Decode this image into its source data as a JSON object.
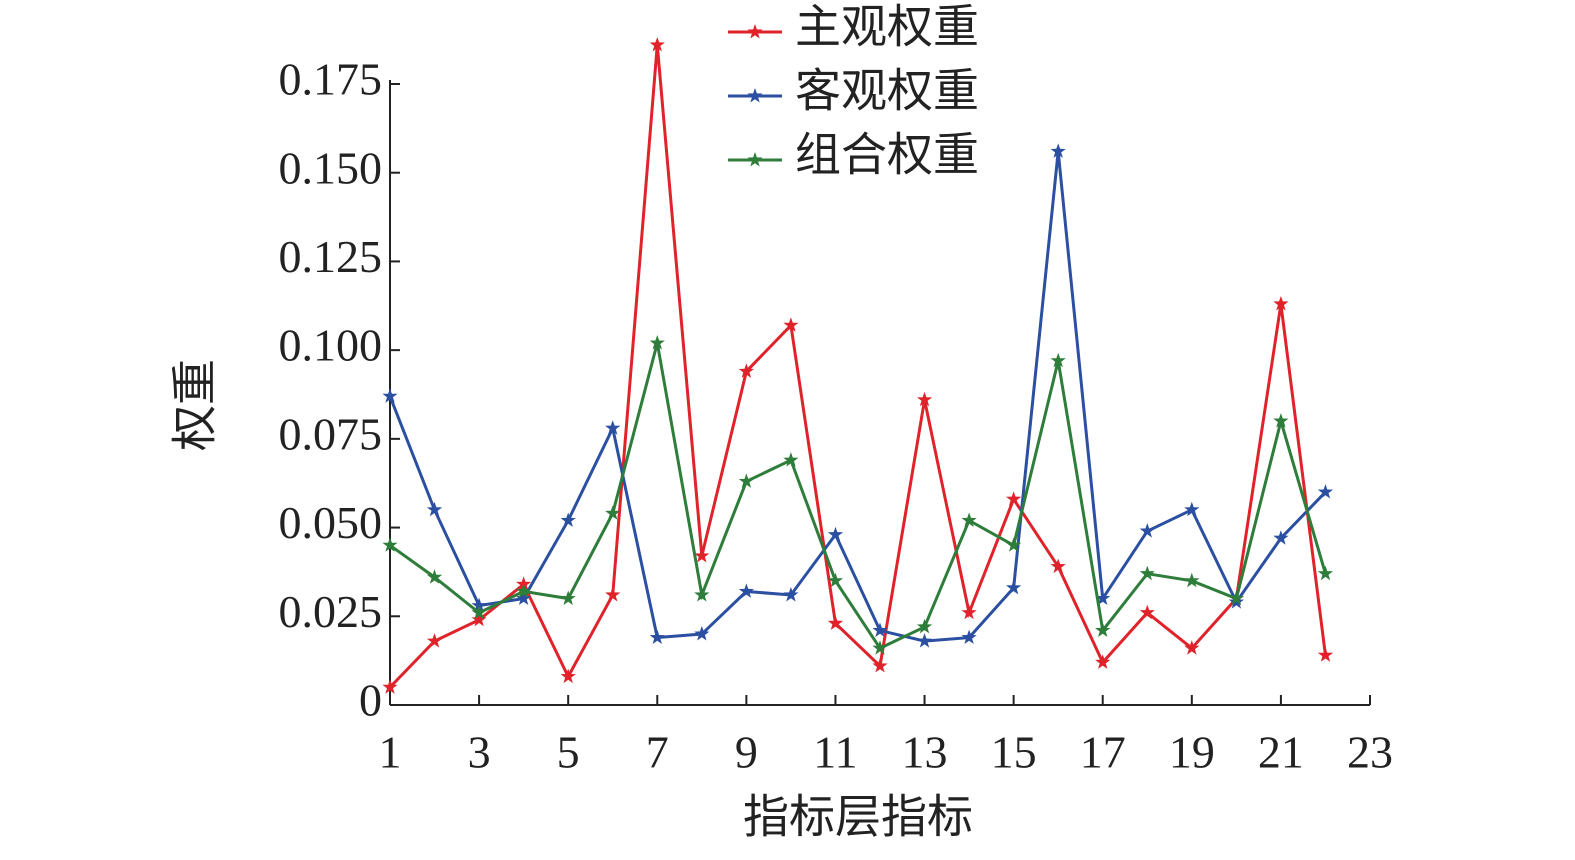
{
  "chart_data": {
    "type": "line",
    "x_label": "指标层指标",
    "y_label": "权重",
    "x": [
      1,
      2,
      3,
      4,
      5,
      6,
      7,
      8,
      9,
      10,
      11,
      12,
      13,
      14,
      15,
      16,
      17,
      18,
      19,
      20,
      21,
      22
    ],
    "series": [
      {
        "name": "主观权重",
        "color": "#e0232b",
        "values": [
          0.005,
          0.018,
          0.024,
          0.034,
          0.008,
          0.031,
          0.186,
          0.042,
          0.094,
          0.107,
          0.023,
          0.011,
          0.086,
          0.026,
          0.058,
          0.039,
          0.012,
          0.026,
          0.016,
          0.03,
          0.113,
          0.014
        ]
      },
      {
        "name": "客观权重",
        "color": "#2b4fa1",
        "values": [
          0.087,
          0.055,
          0.028,
          0.03,
          0.052,
          0.078,
          0.019,
          0.02,
          0.032,
          0.031,
          0.048,
          0.021,
          0.018,
          0.019,
          0.033,
          0.156,
          0.03,
          0.049,
          0.055,
          0.029,
          0.047,
          0.06
        ]
      },
      {
        "name": "组合权重",
        "color": "#2e7d3a",
        "values": [
          0.045,
          0.036,
          0.026,
          0.032,
          0.03,
          0.054,
          0.102,
          0.031,
          0.063,
          0.069,
          0.035,
          0.016,
          0.022,
          0.052,
          0.045,
          0.097,
          0.021,
          0.037,
          0.035,
          0.03,
          0.08,
          0.037
        ]
      }
    ],
    "xlim": [
      1,
      23
    ],
    "xticks": [
      1,
      3,
      5,
      7,
      9,
      11,
      13,
      15,
      17,
      19,
      21,
      23
    ],
    "ylim": [
      0,
      0.175
    ],
    "yticks": [
      0,
      0.025,
      {
        "value": 0.05,
        "label": "0.050"
      },
      0.075,
      {
        "value": 0.1,
        "label": "0.100"
      },
      0.125,
      {
        "value": 0.15,
        "label": "0.150"
      },
      0.175
    ],
    "legend": "top"
  }
}
